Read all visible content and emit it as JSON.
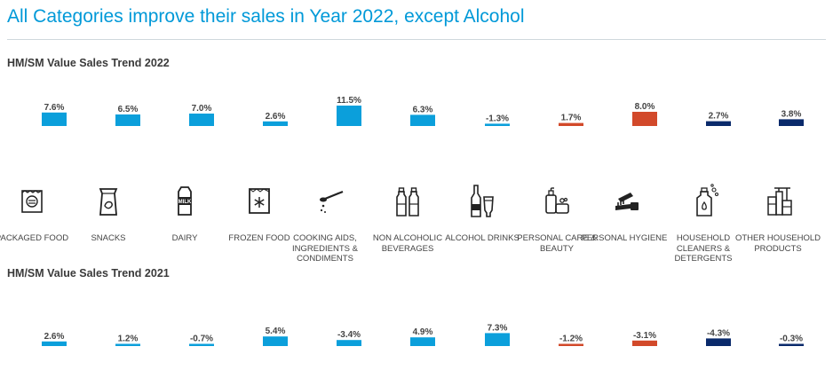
{
  "title": "All Categories improve their sales in Year 2022, except Alcohol",
  "colors": {
    "blue": "#0b9fdb",
    "red": "#d2492a",
    "navy": "#0a2a6b",
    "title": "#0099d8"
  },
  "categories": [
    {
      "label": "PACKAGED FOOD",
      "icon": "packaged-food-icon"
    },
    {
      "label": "SNACKS",
      "icon": "snacks-icon"
    },
    {
      "label": "DAIRY",
      "icon": "milk-carton-icon"
    },
    {
      "label": "FROZEN FOOD",
      "icon": "frozen-food-icon"
    },
    {
      "label": "COOKING AIDS, INGREDIENTS & CONDIMENTS",
      "icon": "spoon-icon"
    },
    {
      "label": "NON ALCOHOLIC BEVERAGES",
      "icon": "bottles-icon"
    },
    {
      "label": "ALCOHOL DRINKS",
      "icon": "alcohol-bottle-icon"
    },
    {
      "label": "PERSONAL CARE & BEAUTY",
      "icon": "personal-care-icon"
    },
    {
      "label": "PERSONAL HYGIENE",
      "icon": "toothbrush-icon"
    },
    {
      "label": "HOUSEHOLD CLEANERS & DETERGENTS",
      "icon": "detergent-bottle-icon"
    },
    {
      "label": "OTHER HOUSEHOLD PRODUCTS",
      "icon": "household-products-icon"
    }
  ],
  "chart_data": [
    {
      "type": "bar",
      "title": "HM/SM Value Sales Trend 2022",
      "categories": [
        "PACKAGED FOOD",
        "SNACKS",
        "DAIRY",
        "FROZEN FOOD",
        "COOKING AIDS, INGREDIENTS & CONDIMENTS",
        "NON ALCOHOLIC BEVERAGES",
        "ALCOHOL DRINKS",
        "PERSONAL CARE & BEAUTY",
        "PERSONAL HYGIENE",
        "HOUSEHOLD CLEANERS & DETERGENTS",
        "OTHER HOUSEHOLD PRODUCTS"
      ],
      "values": [
        7.6,
        6.5,
        7.0,
        2.6,
        11.5,
        6.3,
        -1.3,
        1.7,
        8.0,
        2.7,
        3.8
      ],
      "labels": [
        "7.6%",
        "6.5%",
        "7.0%",
        "2.6%",
        "11.5%",
        "6.3%",
        "-1.3%",
        "1.7%",
        "8.0%",
        "2.7%",
        "3.8%"
      ],
      "colors": [
        "#0b9fdb",
        "#0b9fdb",
        "#0b9fdb",
        "#0b9fdb",
        "#0b9fdb",
        "#0b9fdb",
        "#0b9fdb",
        "#d2492a",
        "#d2492a",
        "#0a2a6b",
        "#0a2a6b"
      ],
      "grid": false
    },
    {
      "type": "bar",
      "title": "HM/SM Value Sales Trend 2021",
      "categories": [
        "PACKAGED FOOD",
        "SNACKS",
        "DAIRY",
        "FROZEN FOOD",
        "COOKING AIDS, INGREDIENTS & CONDIMENTS",
        "NON ALCOHOLIC BEVERAGES",
        "ALCOHOL DRINKS",
        "PERSONAL CARE & BEAUTY",
        "PERSONAL HYGIENE",
        "HOUSEHOLD CLEANERS & DETERGENTS",
        "OTHER HOUSEHOLD PRODUCTS"
      ],
      "values": [
        2.6,
        1.2,
        -0.7,
        5.4,
        -3.4,
        4.9,
        7.3,
        -1.2,
        -3.1,
        -4.3,
        -0.3
      ],
      "labels": [
        "2.6%",
        "1.2%",
        "-0.7%",
        "5.4%",
        "-3.4%",
        "4.9%",
        "7.3%",
        "-1.2%",
        "-3.1%",
        "-4.3%",
        "-0.3%"
      ],
      "colors": [
        "#0b9fdb",
        "#0b9fdb",
        "#0b9fdb",
        "#0b9fdb",
        "#0b9fdb",
        "#0b9fdb",
        "#0b9fdb",
        "#d2492a",
        "#d2492a",
        "#0a2a6b",
        "#0a2a6b"
      ],
      "grid": false
    }
  ]
}
